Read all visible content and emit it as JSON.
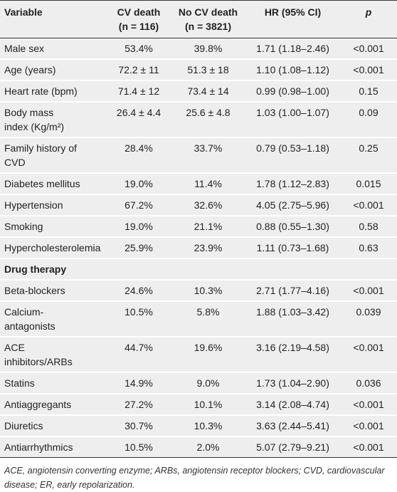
{
  "table": {
    "header": [
      [
        "Variable"
      ],
      [
        "CV death",
        "(n = 116)"
      ],
      [
        "No CV death",
        "(n = 3821)"
      ],
      [
        "HR (95% CI)"
      ],
      [
        "p"
      ]
    ],
    "rows": [
      [
        [
          "Male sex"
        ],
        "53.4%",
        "39.8%",
        "1.71 (1.18–2.46)",
        "<0.001"
      ],
      [
        [
          "Age (years)"
        ],
        "72.2 ± 11",
        "51.3 ± 18",
        "1.10 (1.08–1.12)",
        "<0.001"
      ],
      [
        [
          "Heart rate (bpm)"
        ],
        "71.4 ± 12",
        "73.4 ± 14",
        "0.99 (0.98–1.00)",
        "0.15"
      ],
      [
        [
          "Body mass",
          "index (Kg/m²)"
        ],
        "26.4 ± 4.4",
        "25.6 ± 4.8",
        "1.03 (1.00–1.07)",
        "0.09"
      ],
      [
        [
          "Family history of",
          "CVD"
        ],
        "28.4%",
        "33.7%",
        "0.79 (0.53–1.18)",
        "0.25"
      ],
      [
        [
          "Diabetes mellitus"
        ],
        "19.0%",
        "11.4%",
        "1.78 (1.12–2.83)",
        "0.015"
      ],
      [
        [
          "Hypertension"
        ],
        "67.2%",
        "32.6%",
        "4.05 (2.75–5.96)",
        "<0.001"
      ],
      [
        [
          "Smoking"
        ],
        "19.0%",
        "21.1%",
        "0.88 (0.55–1.30)",
        "0.58"
      ],
      [
        [
          "Hypercholesterolemia"
        ],
        "25.9%",
        "23.9%",
        "1.11 (0.73–1.68)",
        "0.63"
      ]
    ],
    "section": "Drug therapy",
    "section_rows": [
      [
        [
          "Beta-blockers"
        ],
        "24.6%",
        "10.3%",
        "2.71 (1.77–4.16)",
        "<0.001"
      ],
      [
        [
          "Calcium-",
          "antagonists"
        ],
        "10.5%",
        "5.8%",
        "1.88 (1.03–3.42)",
        "0.039"
      ],
      [
        [
          "ACE",
          "inhibitors/ARBs"
        ],
        "44.7%",
        "19.6%",
        "3.16 (2.19–4.58)",
        "<0.001"
      ],
      [
        [
          "Statins"
        ],
        "14.9%",
        "9.0%",
        "1.73 (1.04–2.90)",
        "0.036"
      ],
      [
        [
          "Antiaggregants"
        ],
        "27.2%",
        "10.1%",
        "3.14 (2.08–4.74)",
        "<0.001"
      ],
      [
        [
          "Diuretics"
        ],
        "30.7%",
        "10.3%",
        "3.63 (2.44–5.41)",
        "<0.001"
      ],
      [
        [
          "Antiarrhythmics"
        ],
        "10.5%",
        "2.0%",
        "5.07 (2.79–9.21)",
        "<0.001"
      ]
    ],
    "footnote": "ACE, angiotensin converting enzyme; ARBs, angiotensin receptor blockers; CVD, cardiovascular disease; ER, early repolarization."
  }
}
